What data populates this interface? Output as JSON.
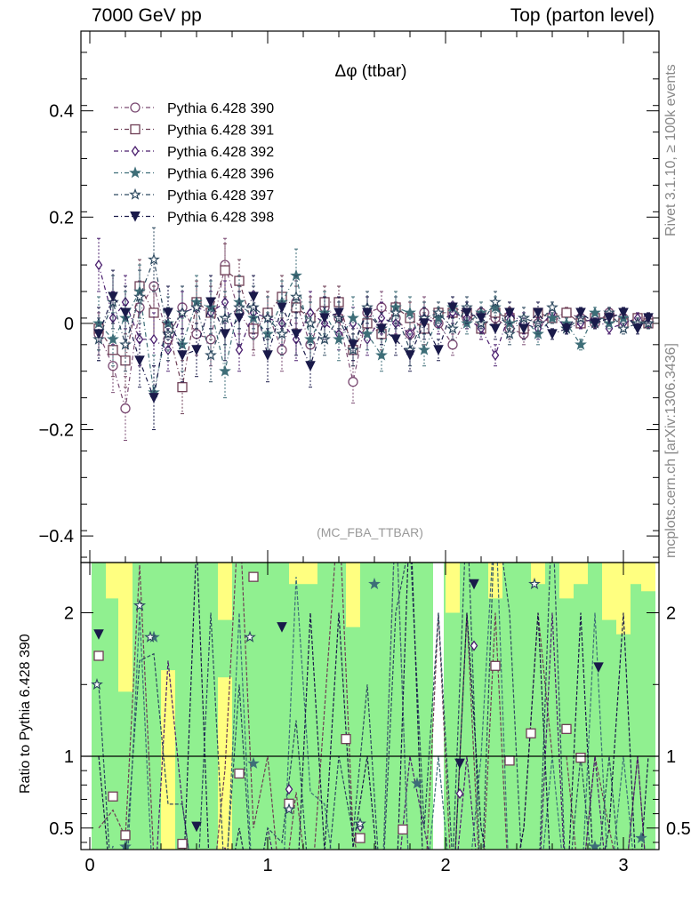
{
  "header": {
    "left": "7000 GeV pp",
    "right": "Top (parton level)"
  },
  "side_labels": {
    "top": "Rivet 3.1.10, ≥ 100k events",
    "bottom": "mcplots.cern.ch [arXiv:1306.3436]"
  },
  "chart_data": [
    {
      "type": "line",
      "title": "Δφ (ttbar)",
      "watermark": "(MC_FBA_TTBAR)",
      "xlim": [
        -0.05,
        3.2
      ],
      "ylim": [
        -0.45,
        0.55
      ],
      "yticks": [
        -0.4,
        -0.2,
        0,
        0.2,
        0.4
      ],
      "ytick_labels": [
        "−0.4",
        "−0.2",
        "0",
        "0.2",
        "0.4"
      ],
      "grid": false,
      "legend_position": "top-left",
      "x": [
        0.05,
        0.13,
        0.2,
        0.28,
        0.36,
        0.44,
        0.52,
        0.6,
        0.68,
        0.76,
        0.84,
        0.92,
        1.0,
        1.08,
        1.16,
        1.24,
        1.32,
        1.4,
        1.48,
        1.56,
        1.64,
        1.72,
        1.8,
        1.88,
        1.96,
        2.04,
        2.12,
        2.2,
        2.28,
        2.36,
        2.44,
        2.52,
        2.6,
        2.68,
        2.76,
        2.84,
        2.92,
        3.0,
        3.08,
        3.14
      ],
      "series": [
        {
          "name": "Pythia 6.428 390",
          "marker": "circle-open",
          "color": "#7a4a72",
          "values": [
            -0.02,
            -0.08,
            -0.16,
            0.03,
            0.07,
            -0.03,
            0.03,
            -0.02,
            -0.03,
            0.11,
            0.02,
            -0.02,
            0.02,
            -0.05,
            0.04,
            -0.04,
            0.03,
            0.01,
            -0.11,
            0.02,
            0.03,
            0.01,
            -0.02,
            0.02,
            0.0,
            -0.04,
            0.01,
            0.02,
            0.01,
            -0.01,
            -0.02,
            0.0,
            0.01,
            0.02,
            0.01,
            0.0,
            0.02,
            0.01,
            0.0,
            0.01
          ],
          "err": [
            0.04,
            0.05,
            0.06,
            0.05,
            0.05,
            0.04,
            0.04,
            0.04,
            0.05,
            0.05,
            0.04,
            0.04,
            0.04,
            0.04,
            0.04,
            0.04,
            0.03,
            0.03,
            0.04,
            0.03,
            0.03,
            0.03,
            0.03,
            0.03,
            0.02,
            0.02,
            0.02,
            0.02,
            0.02,
            0.02,
            0.02,
            0.02,
            0.01,
            0.01,
            0.01,
            0.01,
            0.01,
            0.01,
            0.01,
            0.01
          ]
        },
        {
          "name": "Pythia 6.428 391",
          "marker": "square-open",
          "color": "#6e3e55",
          "values": [
            -0.01,
            -0.05,
            -0.07,
            0.07,
            0.02,
            -0.01,
            -0.12,
            0.04,
            0.02,
            0.1,
            0.08,
            -0.01,
            0.02,
            0.05,
            0.03,
            0.01,
            0.04,
            0.04,
            -0.05,
            0.0,
            -0.02,
            0.03,
            0.01,
            -0.01,
            0.02,
            0.02,
            0.02,
            -0.01,
            0.02,
            0.01,
            -0.01,
            0.02,
            0.01,
            0.02,
            0.0,
            0.01,
            0.01,
            0.0,
            0.01,
            0.0
          ],
          "err": [
            0.04,
            0.05,
            0.05,
            0.05,
            0.05,
            0.04,
            0.05,
            0.04,
            0.05,
            0.05,
            0.04,
            0.04,
            0.04,
            0.04,
            0.04,
            0.04,
            0.03,
            0.03,
            0.03,
            0.03,
            0.03,
            0.03,
            0.03,
            0.03,
            0.02,
            0.02,
            0.02,
            0.02,
            0.02,
            0.02,
            0.02,
            0.02,
            0.01,
            0.01,
            0.01,
            0.01,
            0.01,
            0.01,
            0.01,
            0.01
          ]
        },
        {
          "name": "Pythia 6.428 392",
          "marker": "diamond-open",
          "color": "#4a1e6e",
          "values": [
            0.11,
            0.01,
            0.04,
            -0.03,
            -0.03,
            -0.05,
            0.02,
            0.03,
            0.02,
            0.04,
            -0.05,
            0.02,
            0.01,
            0.0,
            -0.03,
            0.02,
            0.0,
            -0.02,
            0.0,
            -0.03,
            0.01,
            0.0,
            -0.02,
            0.01,
            0.0,
            0.02,
            0.01,
            -0.01,
            -0.06,
            0.02,
            0.0,
            -0.01,
            0.02,
            -0.01,
            0.0,
            0.01,
            -0.01,
            0.0,
            0.01,
            0.0
          ],
          "err": [
            0.05,
            0.05,
            0.05,
            0.05,
            0.05,
            0.04,
            0.04,
            0.04,
            0.04,
            0.04,
            0.04,
            0.04,
            0.04,
            0.04,
            0.04,
            0.04,
            0.03,
            0.03,
            0.03,
            0.03,
            0.03,
            0.03,
            0.03,
            0.03,
            0.02,
            0.02,
            0.02,
            0.02,
            0.02,
            0.02,
            0.02,
            0.02,
            0.01,
            0.01,
            0.01,
            0.01,
            0.01,
            0.01,
            0.01,
            0.01
          ]
        },
        {
          "name": "Pythia 6.428 396",
          "marker": "star-filled",
          "color": "#3e6e78",
          "values": [
            0.0,
            -0.03,
            0.01,
            0.06,
            -0.13,
            0.0,
            -0.04,
            0.04,
            0.03,
            -0.09,
            0.04,
            0.01,
            -0.02,
            0.04,
            0.09,
            -0.03,
            0.02,
            -0.03,
            0.01,
            -0.02,
            -0.06,
            0.03,
            0.02,
            -0.05,
            0.01,
            0.03,
            0.0,
            0.02,
            0.03,
            0.0,
            0.01,
            -0.02,
            0.01,
            0.0,
            -0.04,
            0.02,
            0.0,
            0.01,
            0.0,
            0.0
          ],
          "err": [
            0.05,
            0.05,
            0.05,
            0.05,
            0.07,
            0.05,
            0.05,
            0.05,
            0.05,
            0.05,
            0.05,
            0.04,
            0.04,
            0.04,
            0.05,
            0.04,
            0.04,
            0.04,
            0.04,
            0.03,
            0.03,
            0.03,
            0.03,
            0.03,
            0.02,
            0.02,
            0.02,
            0.02,
            0.02,
            0.02,
            0.02,
            0.02,
            0.01,
            0.01,
            0.01,
            0.01,
            0.01,
            0.01,
            0.01,
            0.01
          ]
        },
        {
          "name": "Pythia 6.428 397",
          "marker": "star-open",
          "color": "#2e4a60",
          "values": [
            -0.03,
            0.04,
            -0.04,
            0.05,
            0.12,
            -0.02,
            0.02,
            0.03,
            -0.06,
            0.01,
            0.03,
            0.03,
            0.01,
            -0.02,
            0.05,
            0.0,
            -0.03,
            0.01,
            -0.05,
            0.03,
            -0.01,
            0.02,
            -0.05,
            0.01,
            0.02,
            -0.01,
            0.03,
            0.0,
            0.04,
            -0.02,
            0.01,
            0.0,
            0.03,
            -0.01,
            0.01,
            0.0,
            0.02,
            -0.01,
            0.0,
            0.0
          ],
          "err": [
            0.04,
            0.05,
            0.05,
            0.05,
            0.06,
            0.05,
            0.05,
            0.04,
            0.05,
            0.05,
            0.04,
            0.04,
            0.04,
            0.04,
            0.04,
            0.04,
            0.03,
            0.03,
            0.03,
            0.03,
            0.03,
            0.03,
            0.03,
            0.03,
            0.02,
            0.02,
            0.02,
            0.02,
            0.02,
            0.02,
            0.02,
            0.02,
            0.01,
            0.01,
            0.01,
            0.01,
            0.01,
            0.01,
            0.01,
            0.01
          ]
        },
        {
          "name": "Pythia 6.428 398",
          "marker": "triangle-down-filled",
          "color": "#1a1a4a",
          "values": [
            -0.02,
            0.05,
            0.02,
            -0.07,
            -0.14,
            0.02,
            -0.06,
            -0.05,
            0.04,
            -0.02,
            0.01,
            0.05,
            -0.06,
            0.03,
            -0.02,
            -0.08,
            0.01,
            0.02,
            -0.04,
            0.02,
            -0.01,
            -0.03,
            -0.06,
            0.0,
            -0.05,
            0.03,
            0.02,
            0.01,
            -0.01,
            0.02,
            -0.01,
            0.02,
            -0.02,
            -0.01,
            0.02,
            0.0,
            0.01,
            0.02,
            -0.01,
            0.01
          ],
          "err": [
            0.05,
            0.05,
            0.05,
            0.05,
            0.06,
            0.05,
            0.05,
            0.05,
            0.05,
            0.05,
            0.05,
            0.04,
            0.05,
            0.04,
            0.04,
            0.04,
            0.04,
            0.03,
            0.03,
            0.03,
            0.03,
            0.03,
            0.03,
            0.03,
            0.02,
            0.02,
            0.02,
            0.02,
            0.02,
            0.02,
            0.02,
            0.02,
            0.01,
            0.01,
            0.01,
            0.01,
            0.01,
            0.01,
            0.01,
            0.01
          ]
        }
      ]
    },
    {
      "type": "line",
      "ylabel": "Ratio to Pythia 6.428 390",
      "xlim": [
        -0.05,
        3.2
      ],
      "ylim": [
        0.35,
        2.35
      ],
      "xticks": [
        0,
        1,
        2,
        3
      ],
      "xtick_labels": [
        "0",
        "1",
        "2",
        "3"
      ],
      "yticks": [
        0.5,
        1,
        2
      ],
      "ytick_labels": [
        "0.5",
        "1",
        "2"
      ],
      "reference_line": 1,
      "band_colors": {
        "inner": "#90f090",
        "outer": "#ffff80"
      },
      "band_inner": [
        0.35,
        0.35,
        1.65,
        0.35,
        0.35,
        1.6,
        0.35,
        0.35,
        0.35,
        1.55,
        0.35,
        0.35,
        0.35,
        0.35,
        0.35,
        0.35,
        0.35,
        0.35,
        0.35,
        0.35,
        0.35,
        0.35,
        0.35,
        0.35,
        0.35,
        0.35,
        0.35,
        0.35,
        0.35,
        0.35,
        0.35,
        0.35,
        0.35,
        0.35,
        0.35,
        0.35,
        0.35,
        0.35,
        0.35,
        0.35
      ],
      "band_outer": [
        0.35,
        0.35,
        0.35,
        0.35,
        0.35,
        0.35,
        0.35,
        0.35,
        0.35,
        0.35,
        0.35,
        0.35,
        0.35,
        0.35,
        0.35,
        0.35,
        0.35,
        0.35,
        0.35,
        0.35,
        0.35,
        0.35,
        0.35,
        0.35,
        0.35,
        0.35,
        0.35,
        0.35,
        0.35,
        0.35,
        0.35,
        0.35,
        0.35,
        0.35,
        0.35,
        0.35,
        0.35,
        0.35,
        0.35,
        0.35
      ],
      "band_upper_inner": [
        2.35,
        2.1,
        1.45,
        2.35,
        2.35,
        2.35,
        2.35,
        2.35,
        2.35,
        1.95,
        2.35,
        2.35,
        2.35,
        2.35,
        2.2,
        2.2,
        2.35,
        2.35,
        1.9,
        2.35,
        2.35,
        2.35,
        2.35,
        2.35,
        2.35,
        2.0,
        2.35,
        2.35,
        2.1,
        2.35,
        2.35,
        2.2,
        2.35,
        2.1,
        2.2,
        2.35,
        1.95,
        1.85,
        2.2,
        2.15
      ],
      "band_upper_outer": [
        2.35,
        2.35,
        2.35,
        2.35,
        2.35,
        2.35,
        2.35,
        2.35,
        2.35,
        2.35,
        2.35,
        2.35,
        2.35,
        2.35,
        2.35,
        2.35,
        2.35,
        2.35,
        2.35,
        2.35,
        2.35,
        2.35,
        2.35,
        2.35,
        2.35,
        2.35,
        2.35,
        2.35,
        2.35,
        2.35,
        2.35,
        2.35,
        2.35,
        2.35,
        2.35,
        2.35,
        2.35,
        2.35,
        2.35,
        2.35
      ],
      "series_ratio_markers": [
        {
          "name": "Pythia 6.428 391",
          "x": [
            0.05,
            0.13,
            0.2,
            0.52,
            0.84,
            0.92,
            1.12,
            1.44,
            1.52,
            1.76,
            2.28,
            2.36,
            2.48,
            2.68,
            2.76
          ],
          "values": [
            1.7,
            0.72,
            0.45,
            0.39,
            0.88,
            2.25,
            0.67,
            1.12,
            0.43,
            0.49,
            1.63,
            0.97,
            1.16,
            1.19,
            0.99
          ]
        },
        {
          "name": "Pythia 6.428 392",
          "x": [
            1.12,
            1.52,
            2.08,
            2.16
          ],
          "values": [
            0.77,
            0.51,
            0.74,
            1.77
          ]
        },
        {
          "name": "Pythia 6.428 396",
          "x": [
            0.2,
            0.28,
            0.36,
            0.92,
            1.6,
            1.84,
            2.84,
            3.1
          ],
          "values": [
            0.37,
            2.05,
            1.83,
            0.95,
            2.2,
            0.81,
            0.37,
            0.43
          ]
        },
        {
          "name": "Pythia 6.428 397",
          "x": [
            0.04,
            0.28,
            0.34,
            0.9,
            1.12,
            1.52,
            2.5
          ],
          "values": [
            1.5,
            2.05,
            1.83,
            1.83,
            0.63,
            0.53,
            2.2
          ]
        },
        {
          "name": "Pythia 6.428 398",
          "x": [
            0.05,
            0.6,
            1.08,
            2.08,
            2.16,
            2.86
          ],
          "values": [
            1.85,
            0.51,
            1.9,
            0.95,
            2.2,
            1.62
          ]
        }
      ]
    }
  ]
}
